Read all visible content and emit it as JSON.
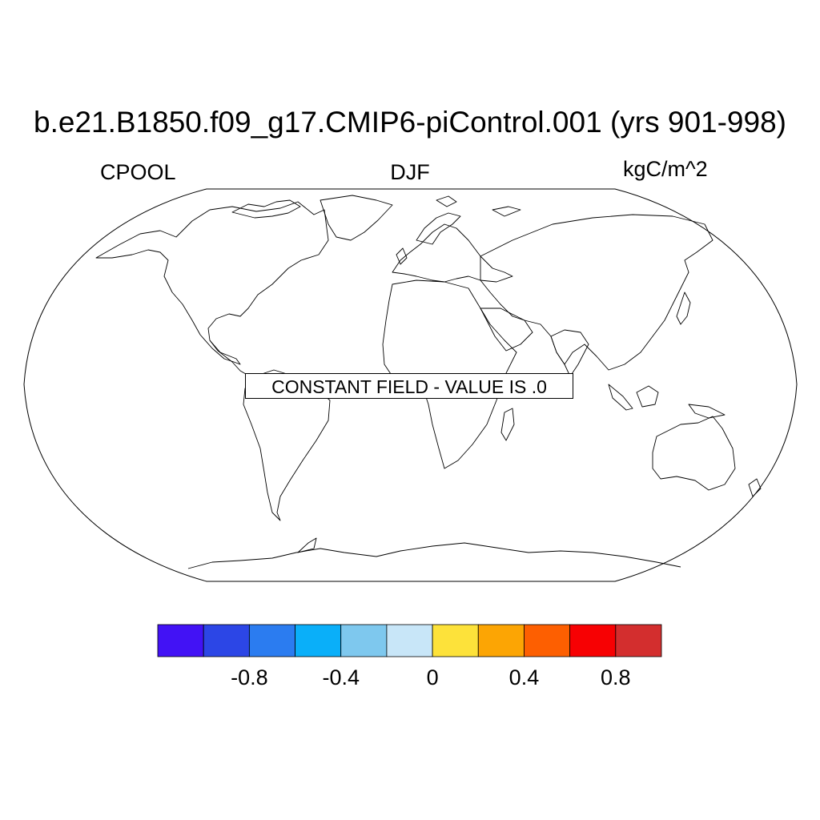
{
  "title": "b.e21.B1850.f09_g17.CMIP6-piControl.001 (yrs 901-998)",
  "left_label": "CPOOL",
  "center_label": "DJF",
  "right_label": "kgC/m^2",
  "notice": "CONSTANT FIELD - VALUE IS .0",
  "map": {
    "projection": "Robinson",
    "outline_color": "#000000",
    "land_fill": "none",
    "ocean_fill": "none"
  },
  "colorbar": {
    "colors": [
      "#4212f5",
      "#2c46e6",
      "#2b7cf0",
      "#0aaff9",
      "#7ec8ee",
      "#c8e6f8",
      "#fde23a",
      "#fca504",
      "#fd5f01",
      "#f70103",
      "#d32e2e"
    ],
    "tick_labels": [
      "-0.8",
      "-0.4",
      "0",
      "0.4",
      "0.8"
    ],
    "tick_after_box": [
      1,
      3,
      5,
      7,
      9
    ]
  }
}
